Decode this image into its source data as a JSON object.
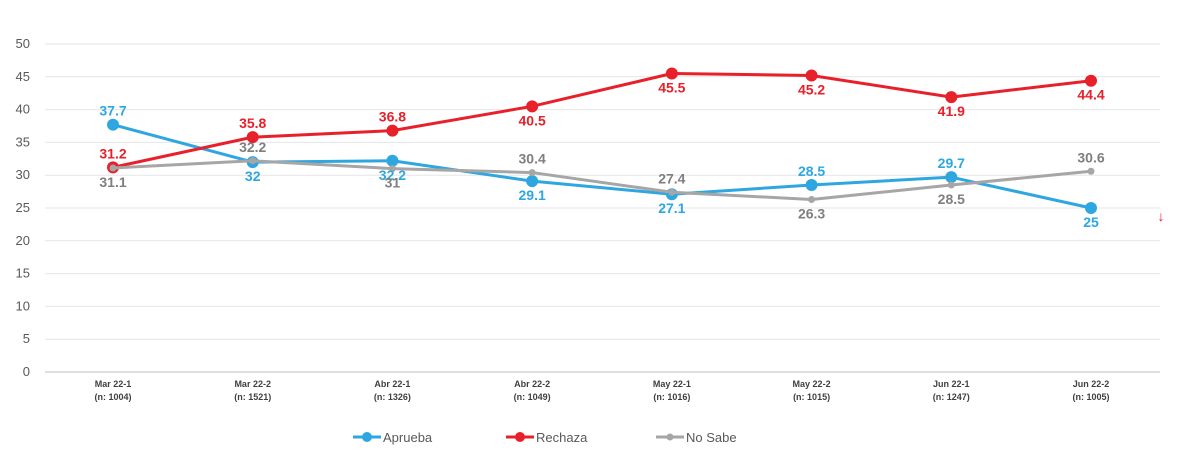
{
  "chart_data": {
    "type": "line",
    "categories": [
      {
        "line1": "Mar 22-1",
        "line2": "(n: 1004)"
      },
      {
        "line1": "Mar 22-2",
        "line2": "(n: 1521)"
      },
      {
        "line1": "Abr 22-1",
        "line2": "(n: 1326)"
      },
      {
        "line1": "Abr 22-2",
        "line2": "(n: 1049)"
      },
      {
        "line1": "May 22-1",
        "line2": "(n: 1016)"
      },
      {
        "line1": "May 22-2",
        "line2": "(n: 1015)"
      },
      {
        "line1": "Jun 22-1",
        "line2": "(n: 1247)"
      },
      {
        "line1": "Jun 22-2",
        "line2": "(n: 1005)"
      }
    ],
    "ylim": [
      0,
      50
    ],
    "yticks": [
      0,
      5,
      10,
      15,
      20,
      25,
      30,
      35,
      40,
      45,
      50
    ],
    "grid": true,
    "legend_position": "bottom",
    "series": [
      {
        "name": "Aprueba",
        "color": "#2ea7e0",
        "values": [
          37.7,
          32,
          32.2,
          29.1,
          27.1,
          28.5,
          29.7,
          25
        ],
        "labels": [
          "37.7",
          "32",
          "32.2",
          "29.1",
          "27.1",
          "28.5",
          "29.7",
          "25"
        ],
        "label_pos": [
          "above",
          "below",
          "below",
          "below",
          "below",
          "above",
          "above",
          "below"
        ]
      },
      {
        "name": "Rechaza",
        "color": "#e8202a",
        "values": [
          31.2,
          35.8,
          36.8,
          40.5,
          45.5,
          45.2,
          41.9,
          44.4
        ],
        "labels": [
          "31.2",
          "35.8",
          "36.8",
          "40.5",
          "45.5",
          "45.2",
          "41.9",
          "44.4"
        ],
        "label_pos": [
          "above",
          "above",
          "above",
          "below",
          "below",
          "below",
          "below",
          "below"
        ]
      },
      {
        "name": "No Sabe",
        "color": "#a6a6a6",
        "values": [
          31.1,
          32.2,
          31,
          30.4,
          27.4,
          26.3,
          28.5,
          30.6
        ],
        "labels": [
          "31.1",
          "32.2",
          "31",
          "30.4",
          "27.4",
          "26.3",
          "28.5",
          "30.6"
        ],
        "label_pos": [
          "below",
          "above",
          "below",
          "above",
          "above",
          "below",
          "below",
          "above"
        ]
      }
    ],
    "annotations": [
      {
        "text": "↓",
        "color": "#e8202a",
        "near": "right of last point"
      }
    ]
  }
}
